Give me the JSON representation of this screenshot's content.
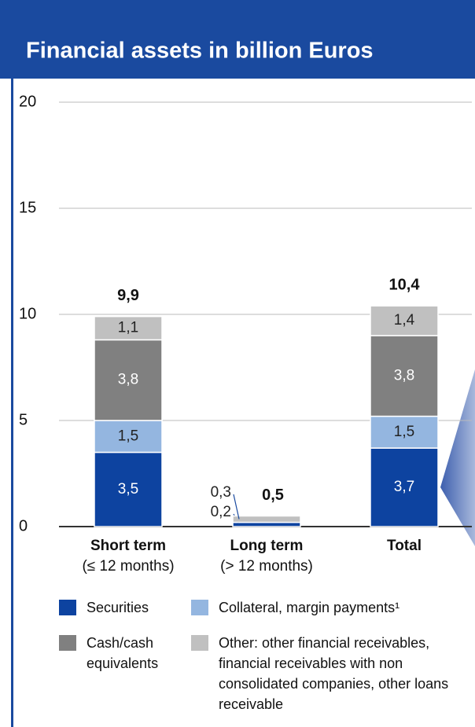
{
  "chart_data": {
    "type": "stacked_bar",
    "title": "Financial assets in billion Euros",
    "categories": [
      "Short term",
      "Long term",
      "Total"
    ],
    "category_notes": [
      "(≤ 12 months)",
      "(> 12 months)",
      null
    ],
    "series": [
      {
        "name": "Securities",
        "color": "#0d43a0",
        "values": [
          3.5,
          0.2,
          3.7
        ],
        "value_labels": [
          "3,5",
          "0,2",
          "3,7"
        ]
      },
      {
        "name": "Collateral, margin payments¹",
        "color": "#94b6e0",
        "values": [
          1.5,
          null,
          1.5
        ],
        "value_labels": [
          "1,5",
          null,
          "1,5"
        ]
      },
      {
        "name": "Cash/cash equivalents",
        "color": "#808080",
        "values": [
          3.8,
          null,
          3.8
        ],
        "value_labels": [
          "3,8",
          null,
          "3,8"
        ]
      },
      {
        "name": "Other: other financial receivables, financial receivables with non consolidated companies, other loans receivable",
        "color": "#c0c0c0",
        "values": [
          1.1,
          0.3,
          1.4
        ],
        "value_labels": [
          "1,1",
          "0,3",
          "1,4"
        ]
      }
    ],
    "totals": {
      "values": [
        9.9,
        0.5,
        10.4
      ],
      "value_labels": [
        "9,9",
        "0,5",
        "10,4"
      ]
    },
    "ylim": [
      0,
      20
    ],
    "yticks": [
      0,
      5,
      10,
      15,
      20
    ],
    "grid": true
  }
}
